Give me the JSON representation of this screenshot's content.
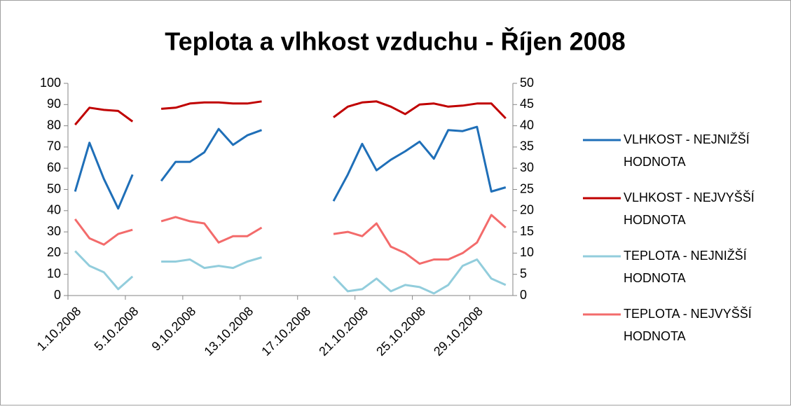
{
  "chart_data": {
    "type": "line",
    "title": "Teplota a vlhkost vzduchu - Říjen 2008",
    "categories": [
      "1.10.2008",
      null,
      null,
      null,
      "5.10.2008",
      null,
      null,
      null,
      "9.10.2008",
      null,
      null,
      null,
      "13.10.2008",
      null,
      null,
      null,
      "17.10.2008",
      null,
      null,
      null,
      "21.10.2008",
      null,
      null,
      null,
      "25.10.2008",
      null,
      null,
      null,
      "29.10.2008",
      null,
      null
    ],
    "ylim": [
      0,
      100
    ],
    "yticks": [
      0,
      10,
      20,
      30,
      40,
      50,
      60,
      70,
      80,
      90,
      100
    ],
    "y2lim": [
      0,
      50
    ],
    "y2ticks": [
      0,
      5,
      10,
      15,
      20,
      25,
      30,
      35,
      40,
      45,
      50
    ],
    "legend": "right",
    "series": [
      {
        "name": "VLHKOST - NEJNIŽŠÍ HODNOTA",
        "color": "#1f6fb8",
        "values": [
          49,
          72,
          55,
          41,
          57,
          null,
          54,
          63,
          63,
          67.5,
          78.5,
          71,
          75.5,
          78,
          null,
          null,
          null,
          null,
          44.5,
          57,
          71.5,
          59,
          64,
          68,
          72.5,
          64.5,
          78,
          77.5,
          79.5,
          49,
          51
        ]
      },
      {
        "name": "VLHKOST - NEJVYŠŠÍ HODNOTA",
        "color": "#c00000",
        "values": [
          80.5,
          88.5,
          87.5,
          87,
          82,
          null,
          88,
          88.5,
          90.5,
          91,
          91,
          90.5,
          90.5,
          91.5,
          null,
          null,
          null,
          null,
          84,
          89,
          91,
          91.5,
          89,
          85.5,
          90,
          90.5,
          89,
          89.5,
          90.5,
          90.5,
          83.5
        ]
      },
      {
        "name": "TEPLOTA - NEJNIŽŠÍ HODNOTA",
        "color": "#92cddc",
        "axis": "y2",
        "values": [
          10.5,
          7,
          5.5,
          1.5,
          4.5,
          null,
          8,
          8,
          8.5,
          6.5,
          7,
          6.5,
          8,
          9,
          null,
          null,
          null,
          null,
          4.5,
          1,
          1.5,
          4,
          1,
          2.5,
          2,
          0.5,
          2.5,
          7,
          8.5,
          4,
          2.5
        ]
      },
      {
        "name": "TEPLOTA - NEJVYŠŠÍ HODNOTA",
        "color": "#f36b6b",
        "axis": "y2",
        "values": [
          18,
          13.5,
          12,
          14.5,
          15.5,
          null,
          17.5,
          18.5,
          17.5,
          17,
          12.5,
          14,
          14,
          16,
          null,
          null,
          null,
          null,
          14.5,
          15,
          14,
          17,
          11.5,
          10,
          7.5,
          8.5,
          8.5,
          10,
          12.5,
          19,
          16
        ]
      }
    ]
  }
}
